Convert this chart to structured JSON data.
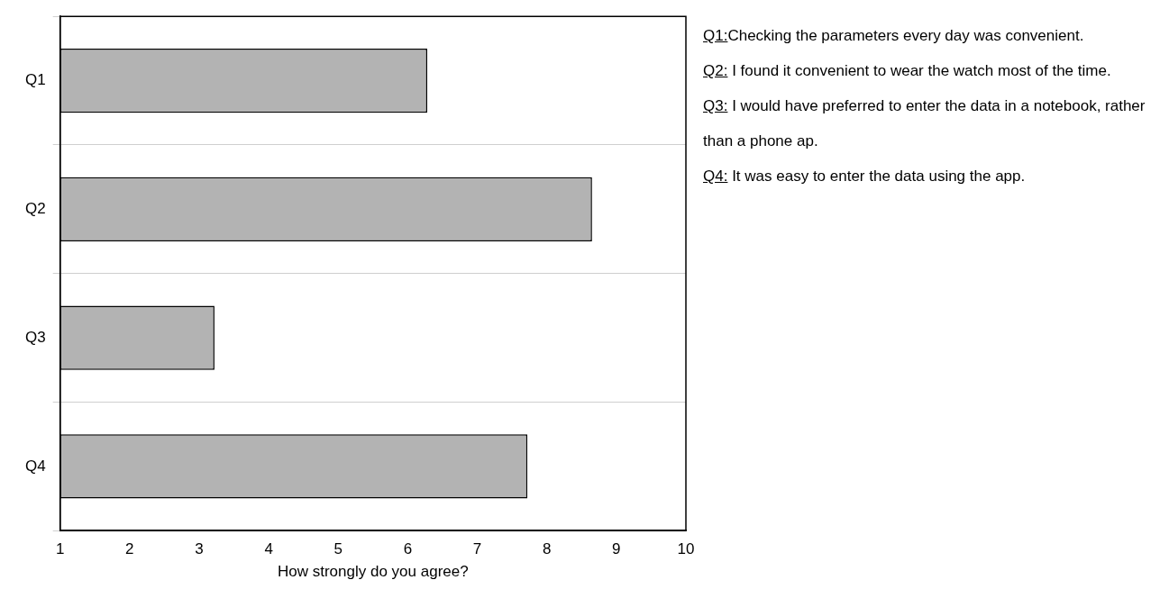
{
  "chart_data": {
    "type": "bar",
    "orientation": "horizontal",
    "categories": [
      "Q1",
      "Q2",
      "Q3",
      "Q4"
    ],
    "values": [
      6.28,
      8.65,
      3.22,
      7.72
    ],
    "color": "#b3b3b3",
    "xlim": [
      1,
      10
    ],
    "xticks": [
      1,
      2,
      3,
      4,
      5,
      6,
      7,
      8,
      9,
      10
    ],
    "xlabel": "How strongly do you agree?",
    "grid": "y",
    "legend": false,
    "annotations": [
      "Q1:Checking the parameters every day was convenient.",
      "Q2: I found it convenient to wear the watch most of the time.",
      "Q3: I would have preferred to enter the data in a notebook, rather than a phone ap.",
      "Q4: It was easy to enter the data using the app."
    ]
  }
}
